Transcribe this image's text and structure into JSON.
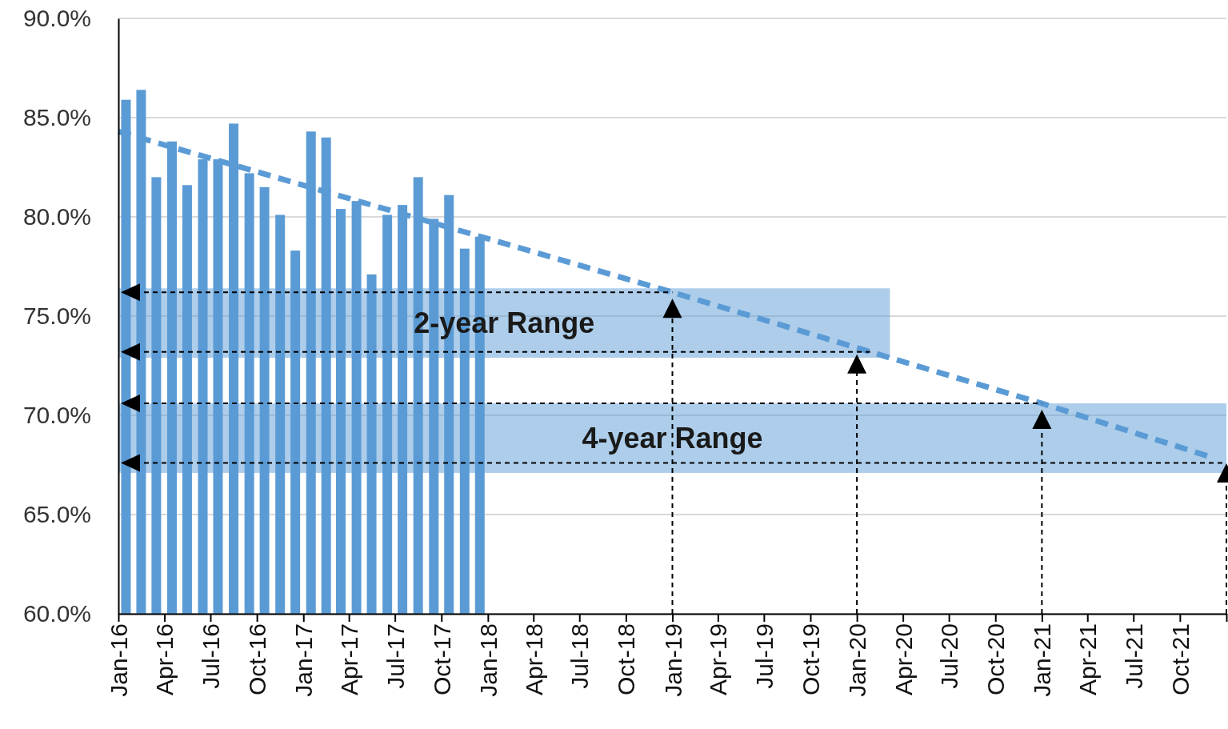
{
  "chart_data": {
    "type": "bar",
    "grid": "y",
    "ylim": [
      60,
      90
    ],
    "yticks": [
      {
        "value": 60,
        "label": "60.0%"
      },
      {
        "value": 65,
        "label": "65.0%"
      },
      {
        "value": 70,
        "label": "70.0%"
      },
      {
        "value": 75,
        "label": "75.0%"
      },
      {
        "value": 80,
        "label": "80.0%"
      },
      {
        "value": 85,
        "label": "85.0%"
      },
      {
        "value": 90,
        "label": "90.0%"
      }
    ],
    "xlim": [
      "2016-01",
      "2022-01"
    ],
    "xticks": [
      {
        "value": "2016-01",
        "label": "Jan-16"
      },
      {
        "value": "2016-04",
        "label": "Apr-16"
      },
      {
        "value": "2016-07",
        "label": "Jul-16"
      },
      {
        "value": "2016-10",
        "label": "Oct-16"
      },
      {
        "value": "2017-01",
        "label": "Jan-17"
      },
      {
        "value": "2017-04",
        "label": "Apr-17"
      },
      {
        "value": "2017-07",
        "label": "Jul-17"
      },
      {
        "value": "2017-10",
        "label": "Oct-17"
      },
      {
        "value": "2018-01",
        "label": "Jan-18"
      },
      {
        "value": "2018-04",
        "label": "Apr-18"
      },
      {
        "value": "2018-07",
        "label": "Jul-18"
      },
      {
        "value": "2018-10",
        "label": "Oct-18"
      },
      {
        "value": "2019-01",
        "label": "Jan-19"
      },
      {
        "value": "2019-04",
        "label": "Apr-19"
      },
      {
        "value": "2019-07",
        "label": "Jul-19"
      },
      {
        "value": "2019-10",
        "label": "Oct-19"
      },
      {
        "value": "2020-01",
        "label": "Jan-20"
      },
      {
        "value": "2020-04",
        "label": "Apr-20"
      },
      {
        "value": "2020-07",
        "label": "Jul-20"
      },
      {
        "value": "2020-10",
        "label": "Oct-20"
      },
      {
        "value": "2021-01",
        "label": "Jan-21"
      },
      {
        "value": "2021-04",
        "label": "Apr-21"
      },
      {
        "value": "2021-07",
        "label": "Jul-21"
      },
      {
        "value": "2021-10",
        "label": "Oct-21"
      },
      {
        "value": "2022-01",
        "label": null
      }
    ],
    "series": [
      {
        "color": "#5b9bd5",
        "x": [
          "2016-01-16",
          "2016-02-15",
          "2016-03-16",
          "2016-04-16",
          "2016-05-16",
          "2016-06-16",
          "2016-07-16",
          "2016-08-16",
          "2016-09-16",
          "2016-10-16",
          "2016-11-16",
          "2016-12-16",
          "2017-01-16",
          "2017-02-15",
          "2017-03-16",
          "2017-04-16",
          "2017-05-16",
          "2017-06-16",
          "2017-07-16",
          "2017-08-16",
          "2017-09-16",
          "2017-10-16",
          "2017-11-16",
          "2017-12-16"
        ],
        "values": [
          85.9,
          86.4,
          82.0,
          83.8,
          81.6,
          82.9,
          82.9,
          84.7,
          82.2,
          81.5,
          80.1,
          78.3,
          84.3,
          84.0,
          80.4,
          80.8,
          77.1,
          80.1,
          80.6,
          82.0,
          79.9,
          81.1,
          78.4,
          79.0
        ]
      },
      {
        "type": "line",
        "color": "#5b9bd5",
        "line_style": "dashed",
        "marker": "none",
        "x": [
          "2016-01",
          "2019-01",
          "2020-01",
          "2021-01",
          "2021-12"
        ],
        "values": [
          84.3,
          76.2,
          73.4,
          70.6,
          67.9
        ]
      }
    ],
    "bands": [
      {
        "axis": "y",
        "from": 72.9,
        "to": 76.4,
        "label": "2-year Range",
        "color": "#5b9bd5"
      },
      {
        "axis": "y",
        "from": 67.1,
        "to": 70.6,
        "label": "4-year Range",
        "color": "#5b9bd5"
      }
    ],
    "ref_lines": [
      {
        "axis": "y",
        "value": 76.2,
        "line_style": "dashed"
      },
      {
        "axis": "y",
        "value": 73.2,
        "line_style": "dashed"
      },
      {
        "axis": "y",
        "value": 70.6,
        "line_style": "dashed"
      },
      {
        "axis": "y",
        "value": 67.6,
        "line_style": "dashed"
      },
      {
        "axis": "x",
        "value": "2019-01",
        "line_style": "dashed"
      },
      {
        "axis": "x",
        "value": "2020-01",
        "line_style": "dashed"
      },
      {
        "axis": "x",
        "value": "2021-01",
        "line_style": "dashed"
      },
      {
        "axis": "x",
        "value": "2022-01",
        "line_style": "dashed"
      }
    ]
  }
}
